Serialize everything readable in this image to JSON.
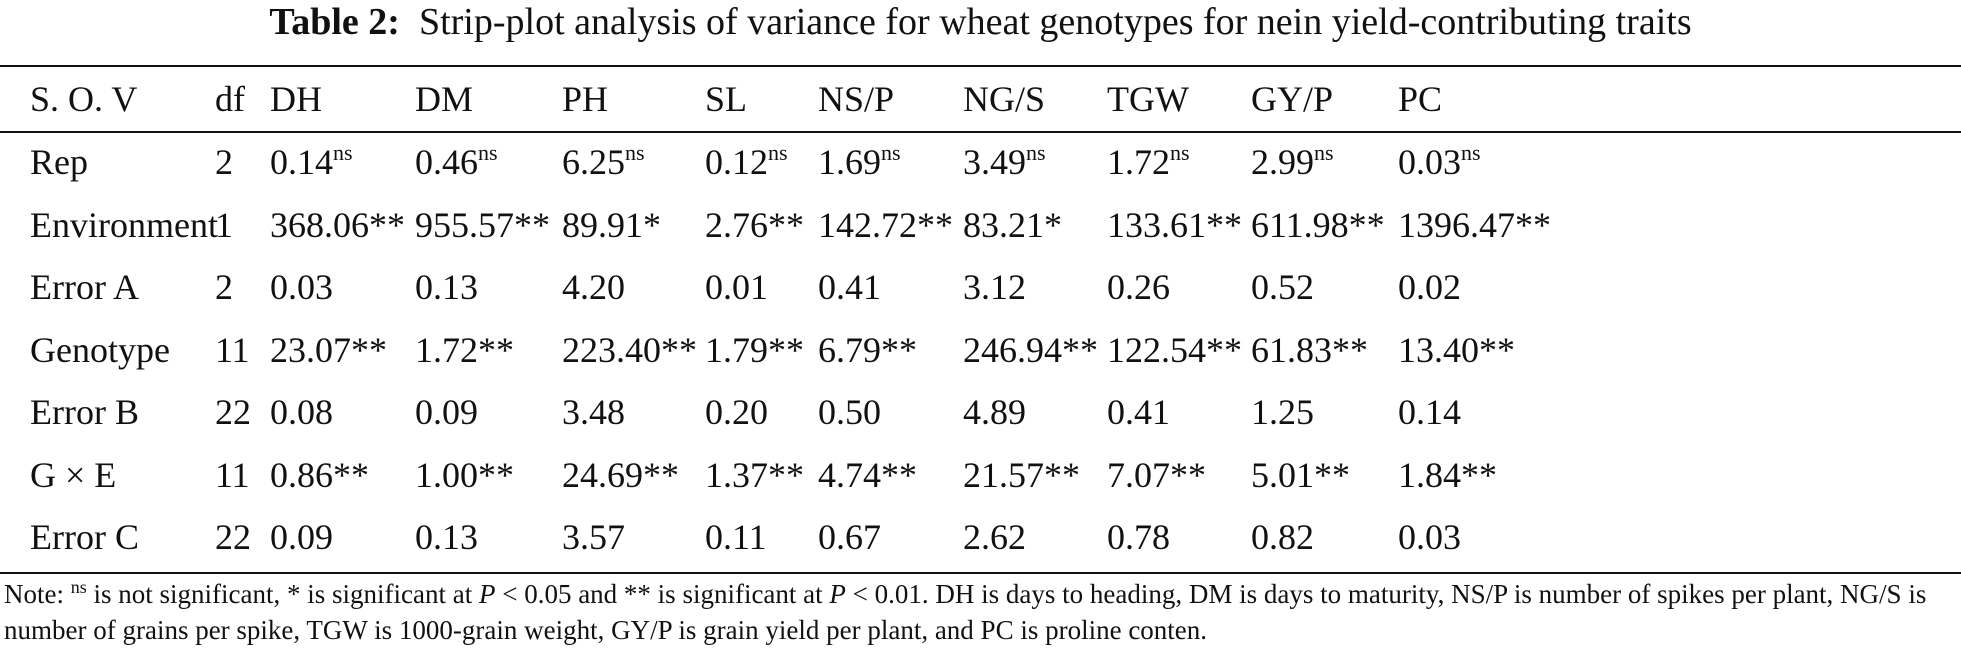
{
  "title": {
    "label": "Table 2:",
    "text": "Strip-plot analysis of variance for wheat genotypes for nein yield-contributing traits"
  },
  "table": {
    "headers": [
      "S. O. V",
      "df",
      "DH",
      "DM",
      "PH",
      "SL",
      "NS/P",
      "NG/S",
      "TGW",
      "GY/P",
      "PC"
    ],
    "rows": [
      {
        "source": "Rep",
        "df": "2",
        "values": [
          {
            "v": "0.14",
            "s": "ns"
          },
          {
            "v": "0.46",
            "s": "ns"
          },
          {
            "v": "6.25",
            "s": "ns"
          },
          {
            "v": "0.12",
            "s": "ns"
          },
          {
            "v": "1.69",
            "s": "ns"
          },
          {
            "v": "3.49",
            "s": "ns"
          },
          {
            "v": "1.72",
            "s": "ns"
          },
          {
            "v": "2.99",
            "s": "ns"
          },
          {
            "v": "0.03",
            "s": "ns"
          }
        ]
      },
      {
        "source": "Environment",
        "df": "1",
        "values": [
          {
            "v": "368.06**",
            "s": ""
          },
          {
            "v": "955.57**",
            "s": ""
          },
          {
            "v": "89.91*",
            "s": ""
          },
          {
            "v": "2.76**",
            "s": ""
          },
          {
            "v": "142.72**",
            "s": ""
          },
          {
            "v": "83.21*",
            "s": ""
          },
          {
            "v": "133.61**",
            "s": ""
          },
          {
            "v": "611.98**",
            "s": ""
          },
          {
            "v": "1396.47**",
            "s": ""
          }
        ]
      },
      {
        "source": "Error A",
        "df": "2",
        "values": [
          {
            "v": "0.03",
            "s": ""
          },
          {
            "v": "0.13",
            "s": ""
          },
          {
            "v": "4.20",
            "s": ""
          },
          {
            "v": "0.01",
            "s": ""
          },
          {
            "v": "0.41",
            "s": ""
          },
          {
            "v": "3.12",
            "s": ""
          },
          {
            "v": "0.26",
            "s": ""
          },
          {
            "v": "0.52",
            "s": ""
          },
          {
            "v": "0.02",
            "s": ""
          }
        ]
      },
      {
        "source": "Genotype",
        "df": "11",
        "values": [
          {
            "v": "23.07**",
            "s": ""
          },
          {
            "v": "1.72**",
            "s": ""
          },
          {
            "v": "223.40**",
            "s": ""
          },
          {
            "v": "1.79**",
            "s": ""
          },
          {
            "v": "6.79**",
            "s": ""
          },
          {
            "v": "246.94**",
            "s": ""
          },
          {
            "v": "122.54**",
            "s": ""
          },
          {
            "v": "61.83**",
            "s": ""
          },
          {
            "v": "13.40**",
            "s": ""
          }
        ]
      },
      {
        "source": "Error B",
        "df": "22",
        "values": [
          {
            "v": "0.08",
            "s": ""
          },
          {
            "v": "0.09",
            "s": ""
          },
          {
            "v": "3.48",
            "s": ""
          },
          {
            "v": "0.20",
            "s": ""
          },
          {
            "v": "0.50",
            "s": ""
          },
          {
            "v": "4.89",
            "s": ""
          },
          {
            "v": "0.41",
            "s": ""
          },
          {
            "v": "1.25",
            "s": ""
          },
          {
            "v": "0.14",
            "s": ""
          }
        ]
      },
      {
        "source": "G × E",
        "df": "11",
        "values": [
          {
            "v": "0.86**",
            "s": ""
          },
          {
            "v": "1.00**",
            "s": ""
          },
          {
            "v": "24.69**",
            "s": ""
          },
          {
            "v": "1.37**",
            "s": ""
          },
          {
            "v": "4.74**",
            "s": ""
          },
          {
            "v": "21.57**",
            "s": ""
          },
          {
            "v": "7.07**",
            "s": ""
          },
          {
            "v": "5.01**",
            "s": ""
          },
          {
            "v": "1.84**",
            "s": ""
          }
        ]
      },
      {
        "source": "Error C",
        "df": "22",
        "values": [
          {
            "v": "0.09",
            "s": ""
          },
          {
            "v": "0.13",
            "s": ""
          },
          {
            "v": "3.57",
            "s": ""
          },
          {
            "v": "0.11",
            "s": ""
          },
          {
            "v": "0.67",
            "s": ""
          },
          {
            "v": "2.62",
            "s": ""
          },
          {
            "v": "0.78",
            "s": ""
          },
          {
            "v": "0.82",
            "s": ""
          },
          {
            "v": "0.03",
            "s": ""
          }
        ]
      }
    ]
  },
  "note": {
    "prefix": "Note: ",
    "ns_sup": "ns",
    "t1": " is not significant, * is significant at ",
    "p1": "P",
    "t2": " < 0.05 and ** is significant at ",
    "p2": "P",
    "t3": " < 0.01. DH is days to heading, DM is days to maturity, NS/P is number of spikes per plant, NG/S is number of grains per spike, TGW is 1000-grain weight, GY/P is grain yield per plant, and PC is proline conten."
  }
}
